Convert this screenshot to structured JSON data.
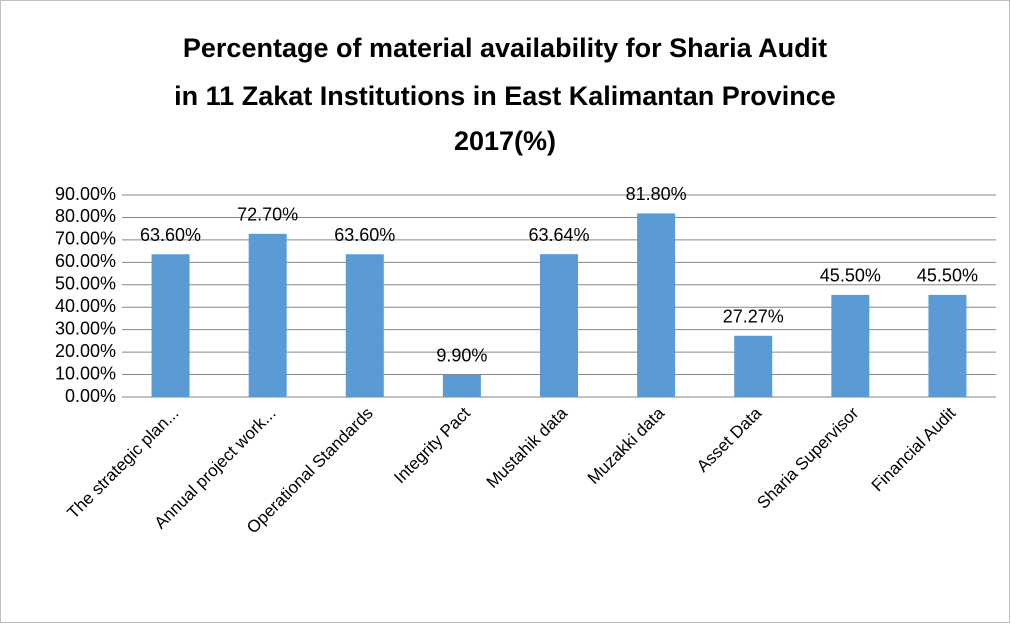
{
  "chart_data": {
    "type": "bar",
    "title": [
      "Percentage of material availability for Sharia Audit",
      "in 11 Zakat Institutions in East Kalimantan Province",
      "2017(%)"
    ],
    "categories": [
      "The strategic plan...",
      "Annual project work...",
      "Operational Standards",
      "Integrity Pact",
      "Mustahik data",
      "Muzakki data",
      "Asset Data",
      "Sharia Supervisor",
      "Financial Audit"
    ],
    "values": [
      63.6,
      72.7,
      63.6,
      9.9,
      63.64,
      81.8,
      27.27,
      45.5,
      45.5
    ],
    "value_labels": [
      "63.60%",
      "72.70%",
      "63.60%",
      "9.90%",
      "63.64%",
      "81.80%",
      "27.27%",
      "45.50%",
      "45.50%"
    ],
    "color": "#5b9bd5",
    "ylim": [
      0,
      90
    ],
    "yticks": [
      {
        "value": 0,
        "label": "0.00%"
      },
      {
        "value": 10,
        "label": "10.00%"
      },
      {
        "value": 20,
        "label": "20.00%"
      },
      {
        "value": 30,
        "label": "30.00%"
      },
      {
        "value": 40,
        "label": "40.00%"
      },
      {
        "value": 50,
        "label": "50.00%"
      },
      {
        "value": 60,
        "label": "60.00%"
      },
      {
        "value": 70,
        "label": "70.00%"
      },
      {
        "value": 80,
        "label": "80.00%"
      },
      {
        "value": 90,
        "label": "90.00%"
      }
    ],
    "grid": true
  }
}
